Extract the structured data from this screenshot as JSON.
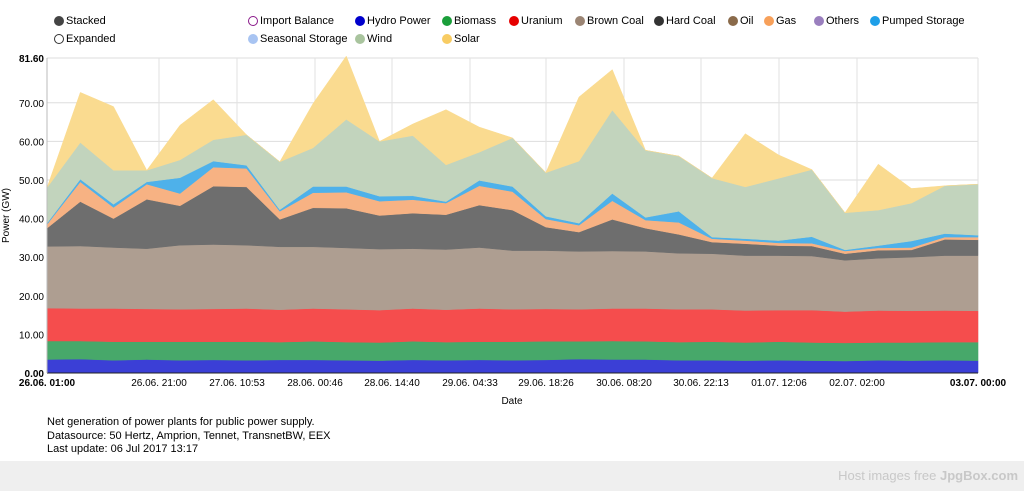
{
  "view_modes": [
    {
      "label": "Stacked",
      "selected": true
    },
    {
      "label": "Expanded",
      "selected": false
    }
  ],
  "legend": [
    {
      "label": "Import Balance",
      "color": "#8b1a8b",
      "hollow": true
    },
    {
      "label": "Hydro Power",
      "color": "#0000cc"
    },
    {
      "label": "Biomass",
      "color": "#1a9e3a"
    },
    {
      "label": "Uranium",
      "color": "#e60000"
    },
    {
      "label": "Brown Coal",
      "color": "#9b8574"
    },
    {
      "label": "Hard Coal",
      "color": "#333333"
    },
    {
      "label": "Oil",
      "color": "#8a6a4a"
    },
    {
      "label": "Gas",
      "color": "#f7a05a"
    },
    {
      "label": "Others",
      "color": "#9a7fbe"
    },
    {
      "label": "Pumped Storage",
      "color": "#1e9fe8"
    },
    {
      "label": "Seasonal Storage",
      "color": "#a8c4f2"
    },
    {
      "label": "Wind",
      "color": "#a9c49e"
    },
    {
      "label": "Solar",
      "color": "#f8cc63"
    }
  ],
  "chart_data": {
    "type": "area",
    "stacked": true,
    "ylabel": "Power (GW)",
    "xlabel": "Date",
    "ylim": [
      0,
      81.6
    ],
    "y_ticks": [
      "0.00",
      "10.00",
      "20.00",
      "30.00",
      "40.00",
      "50.00",
      "60.00",
      "70.00",
      "81.60"
    ],
    "x_ticks": [
      "26.06. 01:00",
      "26.06. 21:00",
      "27.06. 10:53",
      "28.06. 00:46",
      "28.06. 14:40",
      "29.06. 04:33",
      "29.06. 18:26",
      "30.06. 08:20",
      "30.06. 22:13",
      "01.07. 12:06",
      "02.07. 02:00",
      "03.07. 00:00"
    ],
    "x_hours": [
      0,
      6,
      12,
      18,
      24,
      30,
      36,
      42,
      48,
      54,
      60,
      66,
      72,
      78,
      84,
      90,
      96,
      102,
      108,
      114,
      120,
      126,
      132,
      138,
      144,
      150,
      156,
      162,
      168
    ],
    "series": [
      {
        "name": "Hydro Power",
        "color": "#3b3fd6",
        "values": [
          3.5,
          3.6,
          3.3,
          3.5,
          3.3,
          3.4,
          3.3,
          3.4,
          3.4,
          3.3,
          3.2,
          3.4,
          3.3,
          3.4,
          3.3,
          3.4,
          3.6,
          3.5,
          3.5,
          3.3,
          3.3,
          3.2,
          3.3,
          3.2,
          3.1,
          3.3,
          3.2,
          3.3,
          3.2
        ]
      },
      {
        "name": "Biomass",
        "color": "#47a86a",
        "values": [
          4.8,
          4.7,
          4.8,
          4.6,
          4.8,
          4.7,
          4.8,
          4.6,
          4.8,
          4.7,
          4.7,
          4.8,
          4.7,
          4.7,
          4.8,
          4.8,
          4.6,
          4.8,
          4.7,
          4.7,
          4.8,
          4.7,
          4.8,
          4.7,
          4.7,
          4.6,
          4.7,
          4.7,
          4.8
        ]
      },
      {
        "name": "Uranium",
        "color": "#f54d4d",
        "values": [
          8.5,
          8.4,
          8.6,
          8.5,
          8.4,
          8.5,
          8.6,
          8.4,
          8.5,
          8.5,
          8.4,
          8.5,
          8.4,
          8.6,
          8.4,
          8.4,
          8.3,
          8.4,
          8.5,
          8.5,
          8.4,
          8.3,
          8.2,
          8.4,
          8.1,
          8.3,
          8.2,
          8.2,
          8.1
        ]
      },
      {
        "name": "Brown Coal",
        "color": "#ae9e91",
        "values": [
          16.0,
          16.2,
          15.8,
          15.6,
          16.6,
          16.7,
          16.4,
          16.3,
          16.0,
          15.9,
          15.8,
          15.5,
          15.6,
          15.8,
          15.2,
          15.1,
          15.0,
          14.9,
          14.8,
          14.5,
          14.4,
          14.2,
          14.1,
          14.0,
          13.3,
          13.5,
          13.9,
          14.2,
          14.3
        ]
      },
      {
        "name": "Hard Coal",
        "color": "#6e6e6e",
        "values": [
          4.7,
          11.5,
          7.5,
          12.8,
          10.2,
          15.1,
          15.1,
          7.1,
          10.1,
          10.3,
          8.7,
          9.2,
          9.0,
          11.0,
          10.5,
          6.1,
          5.0,
          8.2,
          6.0,
          4.9,
          3.0,
          3.1,
          2.6,
          2.6,
          1.7,
          2.1,
          1.9,
          4.2,
          4.1
        ]
      },
      {
        "name": "Gas",
        "color": "#f7b283",
        "values": [
          1.0,
          5.1,
          2.9,
          3.9,
          3.2,
          4.9,
          4.8,
          2.1,
          3.9,
          4.1,
          3.7,
          3.5,
          3.0,
          5.0,
          4.8,
          2.1,
          1.8,
          4.8,
          2.1,
          3.1,
          0.9,
          0.8,
          0.7,
          0.7,
          0.7,
          0.6,
          0.6,
          0.6,
          0.7
        ]
      },
      {
        "name": "Pumped Storage",
        "color": "#4eb1ea",
        "values": [
          0.3,
          0.7,
          0.8,
          0.6,
          4.1,
          1.6,
          0.8,
          0.4,
          1.6,
          1.5,
          1.3,
          1.0,
          0.4,
          1.4,
          1.3,
          0.7,
          0.5,
          1.9,
          0.7,
          2.9,
          0.4,
          0.5,
          0.6,
          1.7,
          0.3,
          0.6,
          1.7,
          0.9,
          0.5
        ]
      },
      {
        "name": "Wind",
        "color": "#c2d4bd",
        "values": [
          9.2,
          9.5,
          8.8,
          3.0,
          4.6,
          5.5,
          7.9,
          12.4,
          10.0,
          17.4,
          14.2,
          15.6,
          9.5,
          7.3,
          12.6,
          11.3,
          16.1,
          21.6,
          17.4,
          14.3,
          15.3,
          13.4,
          16.1,
          17.4,
          9.6,
          9.2,
          9.8,
          12.4,
          13.2
        ]
      },
      {
        "name": "Solar",
        "color": "#fadb90",
        "values": [
          0.0,
          13.0,
          16.5,
          0.0,
          9.0,
          10.4,
          0.0,
          0.0,
          11.5,
          16.4,
          0.0,
          3.0,
          14.3,
          6.5,
          0.0,
          0.0,
          16.6,
          10.5,
          0.0,
          0.0,
          0.0,
          13.8,
          6.1,
          0.0,
          0.0,
          11.9,
          3.8,
          0.0,
          0.0
        ]
      }
    ]
  },
  "notes": [
    "Net generation of power plants for public power supply.",
    "Datasource: 50 Hertz, Amprion, Tennet, TransnetBW, EEX",
    "Last update: 06 Jul 2017 13:17"
  ],
  "footer": {
    "text": "Host images free",
    "brand": "JpgBox.com"
  }
}
